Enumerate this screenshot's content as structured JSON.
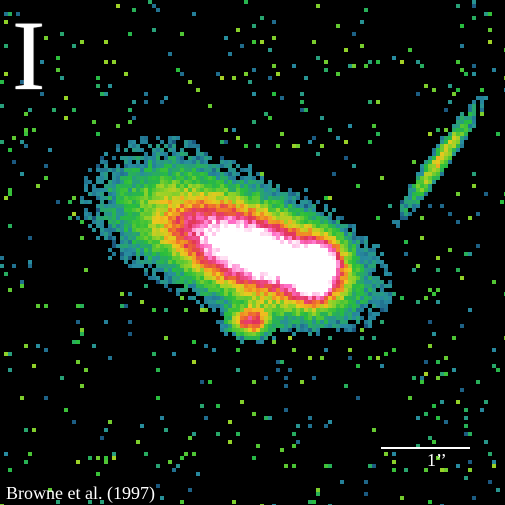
{
  "image": {
    "band_label": "I",
    "scale_label": "1’’",
    "credit": "Browne et al. (1997)"
  },
  "colors": {
    "background": "#000000",
    "core": "#ffffff",
    "bright": "#ff66cc",
    "mid": "#e0305a",
    "outer": "#f0a020",
    "halo": "#2ec030",
    "noise_cool": "#2a8aa0",
    "text": "#ffffff"
  }
}
